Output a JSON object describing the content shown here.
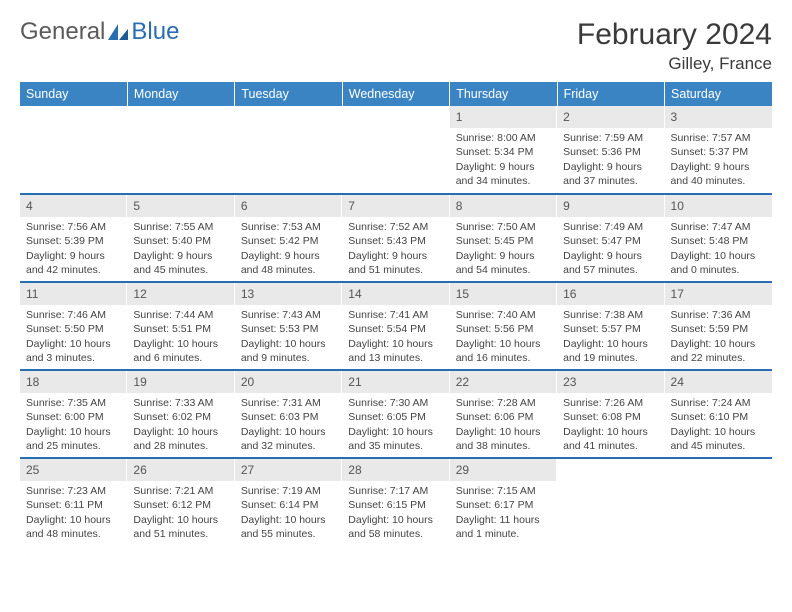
{
  "logo": {
    "text1": "General",
    "text2": "Blue"
  },
  "header": {
    "title": "February 2024",
    "location": "Gilley, France"
  },
  "colors": {
    "header_bg": "#3b84c4",
    "rule": "#2a6db0",
    "daynum_bg": "#e9e9e9"
  },
  "day_names": [
    "Sunday",
    "Monday",
    "Tuesday",
    "Wednesday",
    "Thursday",
    "Friday",
    "Saturday"
  ],
  "weeks": [
    [
      null,
      null,
      null,
      null,
      {
        "n": "1",
        "sr": "8:00 AM",
        "ss": "5:34 PM",
        "dl": "9 hours and 34 minutes."
      },
      {
        "n": "2",
        "sr": "7:59 AM",
        "ss": "5:36 PM",
        "dl": "9 hours and 37 minutes."
      },
      {
        "n": "3",
        "sr": "7:57 AM",
        "ss": "5:37 PM",
        "dl": "9 hours and 40 minutes."
      }
    ],
    [
      {
        "n": "4",
        "sr": "7:56 AM",
        "ss": "5:39 PM",
        "dl": "9 hours and 42 minutes."
      },
      {
        "n": "5",
        "sr": "7:55 AM",
        "ss": "5:40 PM",
        "dl": "9 hours and 45 minutes."
      },
      {
        "n": "6",
        "sr": "7:53 AM",
        "ss": "5:42 PM",
        "dl": "9 hours and 48 minutes."
      },
      {
        "n": "7",
        "sr": "7:52 AM",
        "ss": "5:43 PM",
        "dl": "9 hours and 51 minutes."
      },
      {
        "n": "8",
        "sr": "7:50 AM",
        "ss": "5:45 PM",
        "dl": "9 hours and 54 minutes."
      },
      {
        "n": "9",
        "sr": "7:49 AM",
        "ss": "5:47 PM",
        "dl": "9 hours and 57 minutes."
      },
      {
        "n": "10",
        "sr": "7:47 AM",
        "ss": "5:48 PM",
        "dl": "10 hours and 0 minutes."
      }
    ],
    [
      {
        "n": "11",
        "sr": "7:46 AM",
        "ss": "5:50 PM",
        "dl": "10 hours and 3 minutes."
      },
      {
        "n": "12",
        "sr": "7:44 AM",
        "ss": "5:51 PM",
        "dl": "10 hours and 6 minutes."
      },
      {
        "n": "13",
        "sr": "7:43 AM",
        "ss": "5:53 PM",
        "dl": "10 hours and 9 minutes."
      },
      {
        "n": "14",
        "sr": "7:41 AM",
        "ss": "5:54 PM",
        "dl": "10 hours and 13 minutes."
      },
      {
        "n": "15",
        "sr": "7:40 AM",
        "ss": "5:56 PM",
        "dl": "10 hours and 16 minutes."
      },
      {
        "n": "16",
        "sr": "7:38 AM",
        "ss": "5:57 PM",
        "dl": "10 hours and 19 minutes."
      },
      {
        "n": "17",
        "sr": "7:36 AM",
        "ss": "5:59 PM",
        "dl": "10 hours and 22 minutes."
      }
    ],
    [
      {
        "n": "18",
        "sr": "7:35 AM",
        "ss": "6:00 PM",
        "dl": "10 hours and 25 minutes."
      },
      {
        "n": "19",
        "sr": "7:33 AM",
        "ss": "6:02 PM",
        "dl": "10 hours and 28 minutes."
      },
      {
        "n": "20",
        "sr": "7:31 AM",
        "ss": "6:03 PM",
        "dl": "10 hours and 32 minutes."
      },
      {
        "n": "21",
        "sr": "7:30 AM",
        "ss": "6:05 PM",
        "dl": "10 hours and 35 minutes."
      },
      {
        "n": "22",
        "sr": "7:28 AM",
        "ss": "6:06 PM",
        "dl": "10 hours and 38 minutes."
      },
      {
        "n": "23",
        "sr": "7:26 AM",
        "ss": "6:08 PM",
        "dl": "10 hours and 41 minutes."
      },
      {
        "n": "24",
        "sr": "7:24 AM",
        "ss": "6:10 PM",
        "dl": "10 hours and 45 minutes."
      }
    ],
    [
      {
        "n": "25",
        "sr": "7:23 AM",
        "ss": "6:11 PM",
        "dl": "10 hours and 48 minutes."
      },
      {
        "n": "26",
        "sr": "7:21 AM",
        "ss": "6:12 PM",
        "dl": "10 hours and 51 minutes."
      },
      {
        "n": "27",
        "sr": "7:19 AM",
        "ss": "6:14 PM",
        "dl": "10 hours and 55 minutes."
      },
      {
        "n": "28",
        "sr": "7:17 AM",
        "ss": "6:15 PM",
        "dl": "10 hours and 58 minutes."
      },
      {
        "n": "29",
        "sr": "7:15 AM",
        "ss": "6:17 PM",
        "dl": "11 hours and 1 minute."
      },
      null,
      null
    ]
  ],
  "labels": {
    "sunrise": "Sunrise: ",
    "sunset": "Sunset: ",
    "daylight": "Daylight: "
  }
}
